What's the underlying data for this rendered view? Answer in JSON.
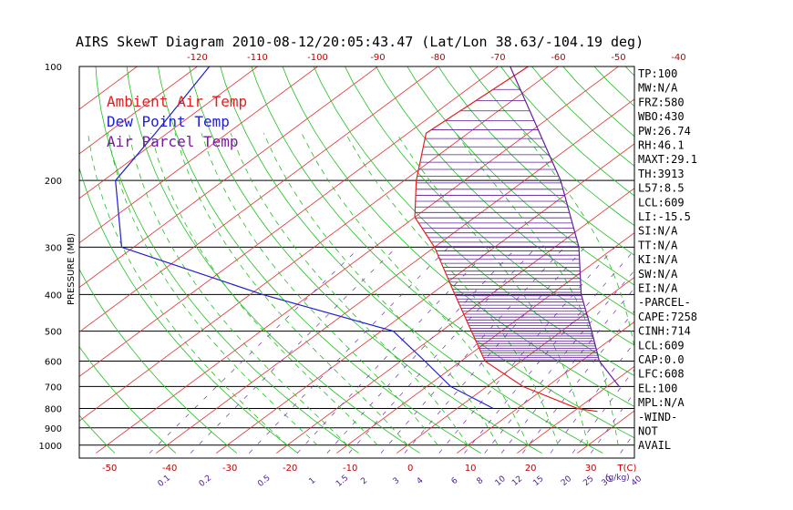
{
  "title": "AIRS SkewT Diagram 2010-08-12/20:05:43.47 (Lat/Lon 38.63/-104.19 deg)",
  "legend": [
    {
      "label": "Ambient Air Temp",
      "color": "#e02020"
    },
    {
      "label": "Dew Point Temp",
      "color": "#2020d0"
    },
    {
      "label": "Air Parcel Temp",
      "color": "#7a1aa0"
    }
  ],
  "colors": {
    "isotherm": "#e03030",
    "dry_adiabat": "#20c020",
    "moist_adiabat": "#20c020",
    "mixing_ratio": "#7030b0",
    "ambient": "#e02020",
    "dewpoint": "#2020d0",
    "parcel": "#6a1aa0",
    "cape_hatch": "#5a1a9a"
  },
  "chart_data": {
    "type": "skewt",
    "ylabel": "PRESSURE (MB)",
    "xlabel_unit": "T(C)",
    "mixing_unit": "(g/kg)",
    "pressure_ticks": [
      "100",
      "200",
      "300",
      "400",
      "500",
      "600",
      "700",
      "800",
      "900",
      "1000"
    ],
    "pressure_levels": [
      100,
      200,
      300,
      400,
      500,
      600,
      700,
      800,
      900,
      1000
    ],
    "top_temp_ticks": [
      "-120",
      "-110",
      "-100",
      "-90",
      "-80",
      "-70",
      "-60",
      "-50",
      "-40"
    ],
    "top_temp_values": [
      -120,
      -110,
      -100,
      -90,
      -80,
      -70,
      -60,
      -50,
      -40
    ],
    "bottom_temp_ticks": [
      "-50",
      "-40",
      "-30",
      "-20",
      "-10",
      "0",
      "10",
      "20",
      "30"
    ],
    "bottom_temp_values": [
      -50,
      -40,
      -30,
      -20,
      -10,
      0,
      10,
      20,
      30
    ],
    "mixing_ratio_ticks": [
      "0.1",
      "0.2",
      "0.5",
      "1",
      "1.5",
      "2",
      "3",
      "4",
      "6",
      "8",
      "10",
      "12",
      "15",
      "20",
      "25",
      "30",
      "40"
    ],
    "ambient_temp": [
      {
        "p": 100,
        "t": -65
      },
      {
        "p": 150,
        "t": -67
      },
      {
        "p": 200,
        "t": -58
      },
      {
        "p": 250,
        "t": -50
      },
      {
        "p": 300,
        "t": -40
      },
      {
        "p": 400,
        "t": -26
      },
      {
        "p": 500,
        "t": -15
      },
      {
        "p": 600,
        "t": -6
      },
      {
        "p": 700,
        "t": 6
      },
      {
        "p": 800,
        "t": 20
      },
      {
        "p": 815,
        "t": 24
      }
    ],
    "dewpoint_temp": [
      {
        "p": 100,
        "t": -118
      },
      {
        "p": 150,
        "t": -112
      },
      {
        "p": 200,
        "t": -108
      },
      {
        "p": 300,
        "t": -92
      },
      {
        "p": 400,
        "t": -58
      },
      {
        "p": 500,
        "t": -28
      },
      {
        "p": 600,
        "t": -16
      },
      {
        "p": 700,
        "t": -6
      },
      {
        "p": 800,
        "t": 6
      }
    ],
    "parcel_temp": [
      {
        "p": 100,
        "t": -68
      },
      {
        "p": 200,
        "t": -34
      },
      {
        "p": 300,
        "t": -16
      },
      {
        "p": 400,
        "t": -5
      },
      {
        "p": 500,
        "t": 5
      },
      {
        "p": 600,
        "t": 13
      },
      {
        "p": 700,
        "t": 22
      }
    ]
  },
  "indices": [
    "TP:100",
    "MW:N/A",
    "FRZ:580",
    "WBO:430",
    "PW:26.74",
    "RH:46.1",
    "MAXT:29.1",
    "TH:3913",
    "L57:8.5",
    "LCL:609",
    "LI:-15.5",
    "SI:N/A",
    "TT:N/A",
    "KI:N/A",
    "SW:N/A",
    "EI:N/A",
    "-PARCEL-",
    "CAPE:7258",
    "CINH:714",
    "LCL:609",
    "CAP:0.0",
    "LFC:608",
    "EL:100",
    "MPL:N/A",
    "-WIND-",
    "NOT",
    "AVAIL"
  ]
}
